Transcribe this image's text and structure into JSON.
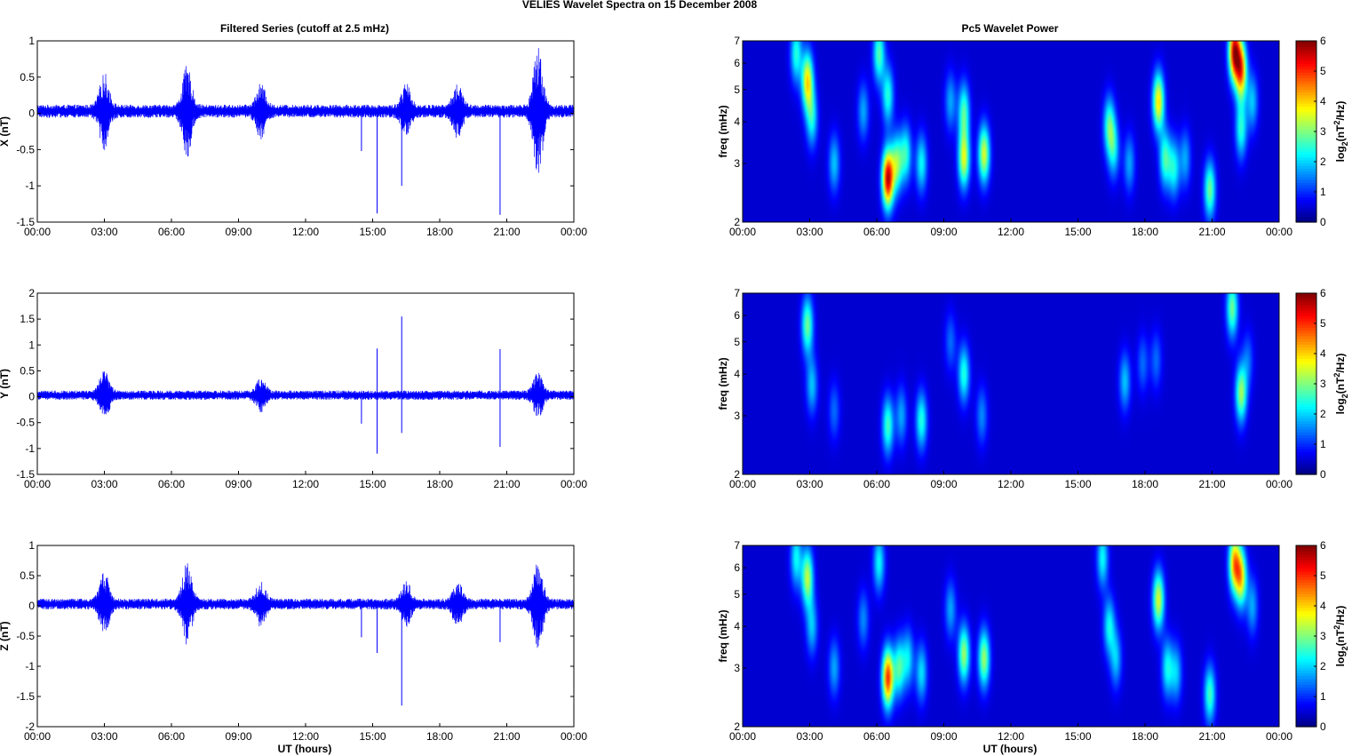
{
  "figure": {
    "title": "VELIES Wavelet Spectra on 15 December  2008",
    "left_title": "Filtered Series (cutoff at 2.5 mHz)",
    "right_title": "Pc5 Wavelet Power",
    "xlabel": "UT (hours)",
    "colorbar_label": "log2(nT2/Hz)"
  },
  "colors": {
    "series_line": "#0000ff",
    "colormap": "jet",
    "axes": "#000000"
  },
  "chart_data": [
    {
      "type": "line",
      "panel": "filtered-x",
      "ylabel": "X (nT)",
      "ylim": [
        -1.5,
        1
      ],
      "yticks": [
        -1.5,
        -1,
        -0.5,
        0,
        0.5,
        1
      ],
      "xlim": [
        0,
        24
      ],
      "xticklabels": [
        "00:00",
        "03:00",
        "06:00",
        "09:00",
        "12:00",
        "15:00",
        "18:00",
        "21:00",
        "00:00"
      ],
      "baseline": 0.03,
      "noise_amplitude": 0.09,
      "bursts": [
        {
          "t": 3.0,
          "amp": 0.45
        },
        {
          "t": 6.7,
          "amp": 0.55
        },
        {
          "t": 10.0,
          "amp": 0.3
        },
        {
          "t": 16.5,
          "amp": 0.3
        },
        {
          "t": 18.8,
          "amp": 0.3
        },
        {
          "t": 22.4,
          "amp": 0.8
        }
      ],
      "spikes": [
        {
          "t": 14.5,
          "y": -0.52
        },
        {
          "t": 15.2,
          "y": -1.38
        },
        {
          "t": 16.3,
          "y": -1.0
        },
        {
          "t": 20.7,
          "y": -1.4
        }
      ]
    },
    {
      "type": "line",
      "panel": "filtered-y",
      "ylabel": "Y (nT)",
      "ylim": [
        -1.5,
        2
      ],
      "yticks": [
        -1.5,
        -1,
        -0.5,
        0,
        0.5,
        1,
        1.5,
        2
      ],
      "xlim": [
        0,
        24
      ],
      "xticklabels": [
        "00:00",
        "03:00",
        "06:00",
        "09:00",
        "12:00",
        "15:00",
        "18:00",
        "21:00",
        "00:00"
      ],
      "baseline": 0.03,
      "noise_amplitude": 0.09,
      "bursts": [
        {
          "t": 3.0,
          "amp": 0.4
        },
        {
          "t": 10.0,
          "amp": 0.25
        },
        {
          "t": 22.4,
          "amp": 0.35
        }
      ],
      "spikes": [
        {
          "t": 14.5,
          "y": -0.52
        },
        {
          "t": 15.2,
          "y": 0.93
        },
        {
          "t": 15.2,
          "y": -1.1
        },
        {
          "t": 16.3,
          "y": 1.55
        },
        {
          "t": 16.3,
          "y": -0.7
        },
        {
          "t": 20.7,
          "y": 0.92
        },
        {
          "t": 20.7,
          "y": -0.97
        }
      ]
    },
    {
      "type": "line",
      "panel": "filtered-z",
      "ylabel": "Z (nT)",
      "ylim": [
        -2,
        1
      ],
      "yticks": [
        -2,
        -1.5,
        -1,
        -0.5,
        0,
        0.5,
        1
      ],
      "xlim": [
        0,
        24
      ],
      "xticklabels": [
        "00:00",
        "03:00",
        "06:00",
        "09:00",
        "12:00",
        "15:00",
        "18:00",
        "21:00",
        "00:00"
      ],
      "baseline": 0.03,
      "noise_amplitude": 0.09,
      "bursts": [
        {
          "t": 3.0,
          "amp": 0.45
        },
        {
          "t": 6.7,
          "amp": 0.6
        },
        {
          "t": 10.0,
          "amp": 0.3
        },
        {
          "t": 16.5,
          "amp": 0.3
        },
        {
          "t": 18.8,
          "amp": 0.3
        },
        {
          "t": 22.4,
          "amp": 0.65
        }
      ],
      "spikes": [
        {
          "t": 14.5,
          "y": -0.52
        },
        {
          "t": 15.2,
          "y": -0.78
        },
        {
          "t": 16.3,
          "y": -1.65
        },
        {
          "t": 20.7,
          "y": -0.6
        }
      ]
    },
    {
      "type": "heatmap",
      "panel": "wavelet-x",
      "ylabel": "freq (mHz)",
      "yscale": "log",
      "ylim": [
        2,
        7
      ],
      "yticks": [
        2,
        3,
        4,
        5,
        6,
        7
      ],
      "xlim": [
        0,
        24
      ],
      "xticklabels": [
        "00:00",
        "03:00",
        "06:00",
        "09:00",
        "12:00",
        "15:00",
        "18:00",
        "21:00",
        "00:00"
      ],
      "clim": [
        0,
        6
      ],
      "cticks": [
        0,
        1,
        2,
        3,
        4,
        5,
        6
      ],
      "blobs": [
        {
          "t": 2.4,
          "f": 6.4,
          "peak": 2.2
        },
        {
          "t": 2.9,
          "f": 5.3,
          "peak": 3.8
        },
        {
          "t": 3.1,
          "f": 4.1,
          "peak": 2.0
        },
        {
          "t": 4.1,
          "f": 3.0,
          "peak": 1.6
        },
        {
          "t": 5.4,
          "f": 4.3,
          "peak": 1.4
        },
        {
          "t": 6.1,
          "f": 6.4,
          "peak": 2.5
        },
        {
          "t": 6.5,
          "f": 2.7,
          "peak": 5.7
        },
        {
          "t": 6.5,
          "f": 4.8,
          "peak": 2.2
        },
        {
          "t": 6.9,
          "f": 3.0,
          "peak": 2.7
        },
        {
          "t": 7.3,
          "f": 3.2,
          "peak": 2.2
        },
        {
          "t": 8.0,
          "f": 3.0,
          "peak": 2.0
        },
        {
          "t": 9.3,
          "f": 4.6,
          "peak": 1.4
        },
        {
          "t": 9.9,
          "f": 3.1,
          "peak": 3.4
        },
        {
          "t": 9.9,
          "f": 4.3,
          "peak": 2.4
        },
        {
          "t": 10.8,
          "f": 3.2,
          "peak": 3.4
        },
        {
          "t": 16.4,
          "f": 3.9,
          "peak": 2.4
        },
        {
          "t": 16.6,
          "f": 3.3,
          "peak": 1.8
        },
        {
          "t": 17.3,
          "f": 3.0,
          "peak": 1.4
        },
        {
          "t": 18.6,
          "f": 4.6,
          "peak": 3.8
        },
        {
          "t": 18.9,
          "f": 3.1,
          "peak": 2.4
        },
        {
          "t": 19.3,
          "f": 2.9,
          "peak": 2.0
        },
        {
          "t": 19.8,
          "f": 3.1,
          "peak": 1.4
        },
        {
          "t": 20.9,
          "f": 2.5,
          "peak": 2.7
        },
        {
          "t": 22.0,
          "f": 6.5,
          "peak": 5.5
        },
        {
          "t": 22.3,
          "f": 5.7,
          "peak": 4.5
        },
        {
          "t": 22.3,
          "f": 3.8,
          "peak": 2.2
        },
        {
          "t": 22.8,
          "f": 4.6,
          "peak": 1.6
        }
      ]
    },
    {
      "type": "heatmap",
      "panel": "wavelet-y",
      "ylabel": "freq (mHz)",
      "yscale": "log",
      "ylim": [
        2,
        7
      ],
      "yticks": [
        2,
        3,
        4,
        5,
        6,
        7
      ],
      "xlim": [
        0,
        24
      ],
      "xticklabels": [
        "00:00",
        "03:00",
        "06:00",
        "09:00",
        "12:00",
        "15:00",
        "18:00",
        "21:00",
        "00:00"
      ],
      "clim": [
        0,
        6
      ],
      "cticks": [
        0,
        1,
        2,
        3,
        4,
        5,
        6
      ],
      "blobs": [
        {
          "t": 2.9,
          "f": 5.6,
          "peak": 2.7
        },
        {
          "t": 3.1,
          "f": 3.7,
          "peak": 1.6
        },
        {
          "t": 4.1,
          "f": 3.1,
          "peak": 1.0
        },
        {
          "t": 6.5,
          "f": 2.8,
          "peak": 2.4
        },
        {
          "t": 7.1,
          "f": 3.0,
          "peak": 1.4
        },
        {
          "t": 8.0,
          "f": 2.9,
          "peak": 2.2
        },
        {
          "t": 9.9,
          "f": 4.0,
          "peak": 2.2
        },
        {
          "t": 10.7,
          "f": 3.0,
          "peak": 1.2
        },
        {
          "t": 9.3,
          "f": 5.0,
          "peak": 1.0
        },
        {
          "t": 17.1,
          "f": 3.8,
          "peak": 1.6
        },
        {
          "t": 17.9,
          "f": 4.3,
          "peak": 1.0
        },
        {
          "t": 18.5,
          "f": 4.4,
          "peak": 1.0
        },
        {
          "t": 21.9,
          "f": 6.3,
          "peak": 2.7
        },
        {
          "t": 22.3,
          "f": 3.5,
          "peak": 3.0
        },
        {
          "t": 22.6,
          "f": 4.4,
          "peak": 1.0
        }
      ]
    },
    {
      "type": "heatmap",
      "panel": "wavelet-z",
      "ylabel": "freq (mHz)",
      "yscale": "log",
      "ylim": [
        2,
        7
      ],
      "yticks": [
        2,
        3,
        4,
        5,
        6,
        7
      ],
      "xlim": [
        0,
        24
      ],
      "xticklabels": [
        "00:00",
        "03:00",
        "06:00",
        "09:00",
        "12:00",
        "15:00",
        "18:00",
        "21:00",
        "00:00"
      ],
      "clim": [
        0,
        6
      ],
      "cticks": [
        0,
        1,
        2,
        3,
        4,
        5,
        6
      ],
      "blobs": [
        {
          "t": 2.4,
          "f": 6.4,
          "peak": 2.0
        },
        {
          "t": 2.9,
          "f": 5.6,
          "peak": 3.2
        },
        {
          "t": 3.1,
          "f": 4.0,
          "peak": 1.6
        },
        {
          "t": 4.1,
          "f": 3.0,
          "peak": 1.4
        },
        {
          "t": 5.4,
          "f": 4.2,
          "peak": 1.2
        },
        {
          "t": 6.1,
          "f": 6.2,
          "peak": 2.0
        },
        {
          "t": 6.5,
          "f": 2.8,
          "peak": 5.0
        },
        {
          "t": 7.0,
          "f": 3.0,
          "peak": 2.4
        },
        {
          "t": 7.4,
          "f": 3.2,
          "peak": 1.8
        },
        {
          "t": 8.0,
          "f": 2.9,
          "peak": 1.8
        },
        {
          "t": 9.3,
          "f": 4.5,
          "peak": 1.4
        },
        {
          "t": 9.9,
          "f": 3.3,
          "peak": 3.0
        },
        {
          "t": 10.8,
          "f": 3.2,
          "peak": 3.0
        },
        {
          "t": 16.1,
          "f": 6.4,
          "peak": 2.0
        },
        {
          "t": 16.4,
          "f": 4.0,
          "peak": 2.0
        },
        {
          "t": 16.7,
          "f": 3.2,
          "peak": 1.6
        },
        {
          "t": 18.6,
          "f": 4.8,
          "peak": 3.4
        },
        {
          "t": 19.0,
          "f": 3.0,
          "peak": 2.0
        },
        {
          "t": 19.4,
          "f": 2.9,
          "peak": 1.6
        },
        {
          "t": 20.9,
          "f": 2.5,
          "peak": 2.4
        },
        {
          "t": 22.0,
          "f": 6.2,
          "peak": 4.0
        },
        {
          "t": 22.3,
          "f": 5.6,
          "peak": 3.6
        },
        {
          "t": 22.8,
          "f": 4.6,
          "peak": 1.4
        }
      ]
    }
  ]
}
